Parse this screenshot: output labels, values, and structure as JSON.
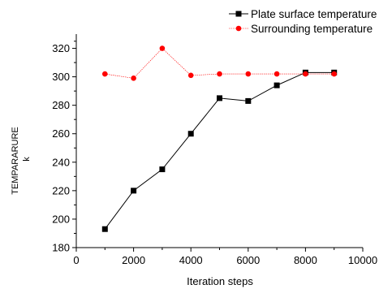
{
  "chart_data": {
    "type": "line",
    "title": "",
    "xlabel": "Iteration steps",
    "ylabel_lines": [
      "TEMPARARURE",
      "k"
    ],
    "xlim": [
      0,
      10000
    ],
    "ylim": [
      180,
      330
    ],
    "xticks": [
      0,
      2000,
      4000,
      6000,
      8000,
      10000
    ],
    "yticks": [
      180,
      200,
      220,
      240,
      260,
      280,
      300,
      320
    ],
    "grid": false,
    "legend_position": "top-right",
    "x": [
      1000,
      2000,
      3000,
      4000,
      5000,
      6000,
      7000,
      8000,
      9000
    ],
    "series": [
      {
        "name": "Plate surface temperature",
        "marker": "square",
        "color": "#000000",
        "values": [
          193,
          220,
          235,
          260,
          285,
          283,
          294,
          303,
          303
        ]
      },
      {
        "name": "Surrounding temperature",
        "marker": "circle",
        "color": "#ff0000",
        "values": [
          302,
          299,
          320,
          301,
          302,
          302,
          302,
          302,
          302
        ]
      }
    ]
  }
}
